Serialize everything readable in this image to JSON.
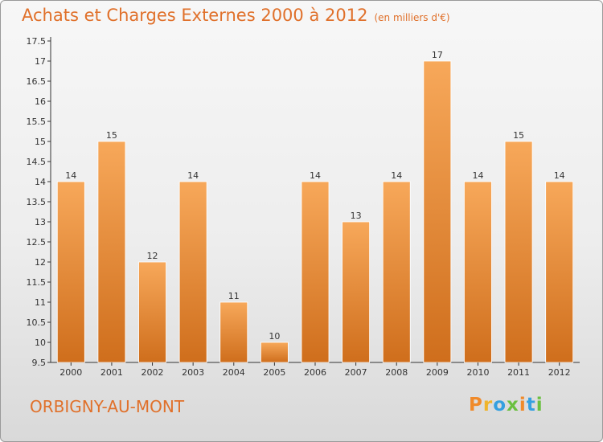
{
  "header": {
    "title": "Achats et Charges Externes 2000 à 2012",
    "subtitle": "(en milliers d'€)"
  },
  "footer": {
    "commune": "ORBIGNY-AU-MONT",
    "logo": {
      "p": "P",
      "r": "r",
      "o": "o",
      "x": "x",
      "i": "i",
      "t": "t",
      "i2": "i"
    }
  },
  "colors": {
    "bar_light": "#f7a85a",
    "bar_dark": "#cf6e1c",
    "title": "#e0702a",
    "axis": "#333333"
  },
  "chart_data": {
    "type": "bar",
    "title": "Achats et Charges Externes 2000 à 2012",
    "subtitle": "(en milliers d'€)",
    "categories": [
      "2000",
      "2001",
      "2002",
      "2003",
      "2004",
      "2005",
      "2006",
      "2007",
      "2008",
      "2009",
      "2010",
      "2011",
      "2012"
    ],
    "values": [
      14,
      15,
      12,
      14,
      11,
      10,
      14,
      13,
      14,
      17,
      14,
      15,
      14
    ],
    "data_labels": [
      "14",
      "15",
      "12",
      "14",
      "11",
      "10",
      "14",
      "13",
      "14",
      "17",
      "14",
      "15",
      "14"
    ],
    "ylim": [
      9.5,
      17.5
    ],
    "yticks": [
      9.5,
      10,
      10.5,
      11,
      11.5,
      12,
      12.5,
      13,
      13.5,
      14,
      14.5,
      15,
      15.5,
      16,
      16.5,
      17,
      17.5
    ],
    "ytick_labels": [
      "9.5",
      "10",
      "10.5",
      "11",
      "11.5",
      "12",
      "12.5",
      "13",
      "13.5",
      "14",
      "14.5",
      "15",
      "15.5",
      "16",
      "16.5",
      "17",
      "17.5"
    ],
    "grid": false,
    "legend": "none"
  }
}
